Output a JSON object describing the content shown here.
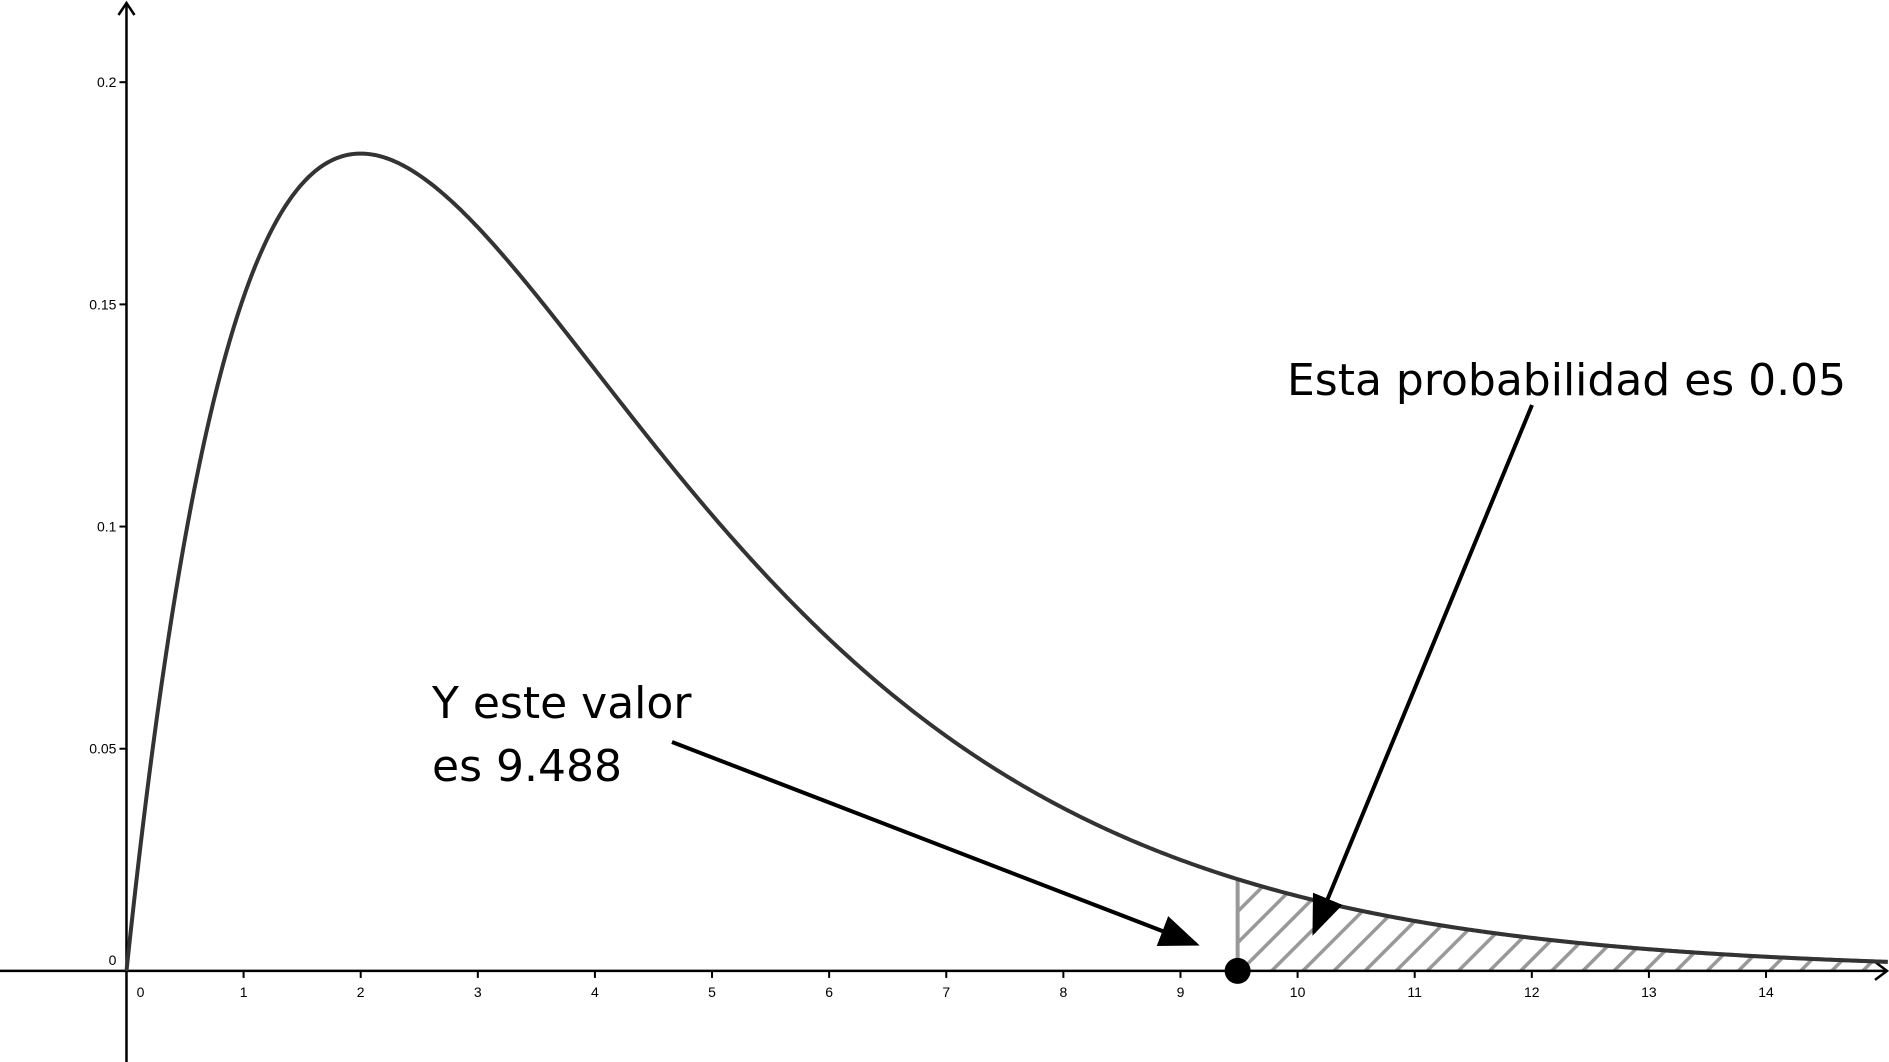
{
  "chart_data": {
    "type": "line",
    "function": "chi-square probability density, 4 degrees of freedom: f(x) = x * exp(-x/2) / 4",
    "xlim": [
      -1.08,
      15.05
    ],
    "ylim": [
      -0.0205,
      0.2185
    ],
    "x_ticks": [
      "0",
      "1",
      "2",
      "3",
      "4",
      "5",
      "6",
      "7",
      "8",
      "9",
      "10",
      "11",
      "12",
      "13",
      "14"
    ],
    "y_ticks": [
      "0",
      "0.05",
      "0.1",
      "0.15",
      "0.2"
    ],
    "x_tick_values": [
      0,
      1,
      2,
      3,
      4,
      5,
      6,
      7,
      8,
      9,
      10,
      11,
      12,
      13,
      14
    ],
    "y_tick_values": [
      0,
      0.05,
      0.1,
      0.15,
      0.2
    ],
    "critical_value": 9.488,
    "shaded_region": {
      "from": 9.488,
      "to": 15.05,
      "pattern": "hatched",
      "tail_probability": 0.05
    },
    "marked_point": {
      "x": 9.488,
      "y": 0
    },
    "annotations": [
      {
        "id": "probability",
        "lines": [
          "Esta probabilidad es 0.05"
        ]
      },
      {
        "id": "value",
        "lines": [
          "Y este valor",
          "es 9.488"
        ]
      }
    ],
    "colors": {
      "curve": "#333333",
      "shade": "#999999",
      "axes": "#000000",
      "point": "#000000"
    }
  }
}
